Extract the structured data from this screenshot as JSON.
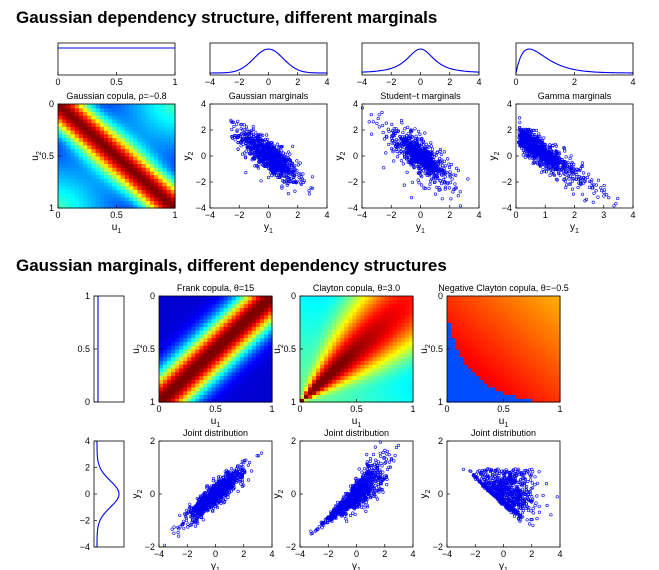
{
  "headings": {
    "section1": "Gaussian dependency structure, different marginals",
    "section2": "Gaussian marginals, different dependency structures"
  },
  "colors": {
    "series": "#0000ee",
    "axis": "#000000"
  },
  "chart_data": [
    {
      "id": "s1-marg-uniform",
      "type": "line",
      "title": "",
      "dist": "uniform",
      "xlim": [
        0,
        1
      ],
      "xticks": [
        "0",
        "0.5",
        "1"
      ]
    },
    {
      "id": "s1-marg-gauss",
      "type": "line",
      "title": "",
      "dist": "normal",
      "xlim": [
        -4,
        4
      ],
      "xticks": [
        "−4",
        "−2",
        "0",
        "2",
        "4"
      ]
    },
    {
      "id": "s1-marg-student",
      "type": "line",
      "title": "",
      "dist": "student-t",
      "xlim": [
        -4,
        4
      ],
      "xticks": [
        "−4",
        "−2",
        "0",
        "2",
        "4"
      ]
    },
    {
      "id": "s1-marg-gamma",
      "type": "line",
      "title": "",
      "dist": "gamma",
      "xlim": [
        0,
        4
      ],
      "xticks": [
        "0",
        "2",
        "4"
      ]
    },
    {
      "id": "s1-copula",
      "type": "heatmap",
      "copula": "gaussian",
      "param": -0.8,
      "title": "Gaussian copula, ρ=−0.8",
      "xlabel": "u",
      "ylabel": "u",
      "xlim": [
        0,
        1
      ],
      "ylim": [
        0,
        1
      ],
      "xticks": [
        "0",
        "0.5",
        "1"
      ],
      "yticks": [
        "0",
        "0.5",
        "1"
      ]
    },
    {
      "id": "s1-gauss",
      "type": "scatter",
      "dist": "normal",
      "rho": -0.8,
      "title": "Gaussian marginals",
      "xlabel": "y",
      "ylabel": "y",
      "xlim": [
        -4,
        4
      ],
      "ylim": [
        -4,
        4
      ],
      "xticks": [
        "−4",
        "−2",
        "0",
        "2",
        "4"
      ],
      "yticks": [
        "4",
        "2",
        "0",
        "−2",
        "−4"
      ]
    },
    {
      "id": "s1-student",
      "type": "scatter",
      "dist": "student-t",
      "rho": -0.8,
      "title": "Student−t marginals",
      "xlabel": "y",
      "ylabel": "y",
      "xlim": [
        -4,
        4
      ],
      "ylim": [
        -4,
        4
      ],
      "xticks": [
        "−4",
        "−2",
        "0",
        "2",
        "4"
      ],
      "yticks": [
        "4",
        "2",
        "0",
        "−2",
        "−4"
      ]
    },
    {
      "id": "s1-gamma",
      "type": "scatter",
      "dist": "gamma",
      "rho": -0.8,
      "title": "Gamma marginals",
      "xlabel": "y",
      "ylabel": "y",
      "xlim": [
        0,
        4
      ],
      "ylim": [
        -4,
        4
      ],
      "xticks": [
        "0",
        "1",
        "2",
        "3",
        "4"
      ],
      "yticks": [
        "4",
        "2",
        "0",
        "−2",
        "−4"
      ]
    },
    {
      "id": "s2-marg-uniform",
      "type": "line",
      "title": "",
      "dist": "uniform",
      "orient": "vertical",
      "ylim": [
        0,
        1
      ],
      "yticks": [
        "1",
        "0.5",
        "0"
      ]
    },
    {
      "id": "s2-frank",
      "type": "heatmap",
      "copula": "frank",
      "param": 15,
      "title": "Frank copula, θ=15",
      "xlabel": "u",
      "ylabel": "u",
      "xlim": [
        0,
        1
      ],
      "ylim": [
        0,
        1
      ],
      "xticks": [
        "0",
        "0.5",
        "1"
      ],
      "yticks": [
        "0",
        "0.5",
        "1"
      ]
    },
    {
      "id": "s2-clayton",
      "type": "heatmap",
      "copula": "clayton",
      "param": 3.0,
      "title": "Clayton copula, θ=3.0",
      "xlabel": "u",
      "ylabel": "u",
      "xlim": [
        0,
        1
      ],
      "ylim": [
        0,
        1
      ],
      "xticks": [
        "0",
        "0.5",
        "1"
      ],
      "yticks": [
        "0",
        "0.5",
        "1"
      ]
    },
    {
      "id": "s2-negclayton",
      "type": "heatmap",
      "copula": "negclayton",
      "param": -0.5,
      "title": "Negative Clayton copula, θ=−0.5",
      "xlabel": "u",
      "ylabel": "u",
      "xlim": [
        0,
        1
      ],
      "ylim": [
        0,
        1
      ],
      "xticks": [
        "0",
        "0.5",
        "1"
      ],
      "yticks": [
        "0",
        "0.5",
        "1"
      ]
    },
    {
      "id": "s2-marg-gauss",
      "type": "line",
      "title": "",
      "dist": "normal",
      "orient": "vertical",
      "ylim": [
        -4,
        4
      ],
      "yticks": [
        "4",
        "2",
        "0",
        "−2",
        "−4"
      ]
    },
    {
      "id": "s2-joint-frank",
      "type": "scatter",
      "dist": "frank",
      "title": "Joint distribution",
      "xlabel": "y",
      "ylabel": "y",
      "xlim": [
        -4,
        4
      ],
      "ylim": [
        -4,
        4
      ],
      "xticks": [
        "−4",
        "−2",
        "0",
        "2",
        "4"
      ],
      "yticks": [
        "2",
        "0",
        "−2"
      ]
    },
    {
      "id": "s2-joint-clayton",
      "type": "scatter",
      "dist": "clayton",
      "title": "Joint distribution",
      "xlabel": "y",
      "ylabel": "y",
      "xlim": [
        -4,
        4
      ],
      "ylim": [
        -4,
        4
      ],
      "xticks": [
        "−4",
        "−2",
        "0",
        "2",
        "4"
      ],
      "yticks": [
        "2",
        "0",
        "−2"
      ]
    },
    {
      "id": "s2-joint-negclayton",
      "type": "scatter",
      "dist": "negclayton",
      "title": "Joint distribution",
      "xlabel": "y",
      "ylabel": "y",
      "xlim": [
        -4,
        4
      ],
      "ylim": [
        -4,
        4
      ],
      "xticks": [
        "−4",
        "−2",
        "0",
        "2",
        "4"
      ],
      "yticks": [
        "2",
        "0",
        "−2"
      ]
    }
  ]
}
